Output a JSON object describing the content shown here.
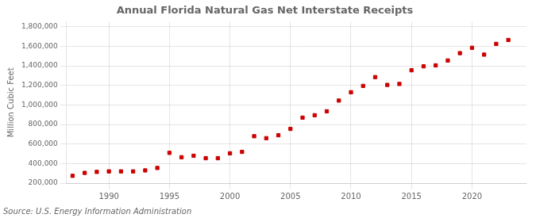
{
  "chart_data": {
    "type": "scatter",
    "title": "Annual Florida Natural Gas Net Interstate Receipts",
    "y_label": "Million Cubic Feet",
    "annotations": [
      "Source: U.S. Energy Information Administration"
    ],
    "x": [
      1987,
      1988,
      1989,
      1990,
      1991,
      1992,
      1993,
      1994,
      1995,
      1996,
      1997,
      1998,
      1999,
      2000,
      2001,
      2002,
      2003,
      2004,
      2005,
      2006,
      2007,
      2008,
      2009,
      2010,
      2011,
      2012,
      2013,
      2014,
      2015,
      2016,
      2017,
      2018,
      2019,
      2020,
      2021,
      2022,
      2023
    ],
    "values": [
      275000,
      305000,
      315000,
      320000,
      320000,
      320000,
      330000,
      355000,
      510000,
      465000,
      480000,
      455000,
      455000,
      505000,
      520000,
      680000,
      660000,
      690000,
      755000,
      870000,
      895000,
      935000,
      1045000,
      1130000,
      1195000,
      1285000,
      1205000,
      1215000,
      1355000,
      1395000,
      1405000,
      1455000,
      1530000,
      1585000,
      1515000,
      1625000,
      1665000
    ],
    "color": "#cc0000",
    "marker": "square",
    "xlim": [
      1986.5,
      2024.5
    ],
    "xticks": [
      1990,
      1995,
      2000,
      2005,
      2010,
      2015,
      2020
    ],
    "ylim": [
      200000,
      1850000
    ],
    "yticks": [
      {
        "value": 200000,
        "label": "200,000"
      },
      {
        "value": 400000,
        "label": "400,000"
      },
      {
        "value": 600000,
        "label": "600,000"
      },
      {
        "value": 800000,
        "label": "800,000"
      },
      {
        "value": 1000000,
        "label": "1,000,000"
      },
      {
        "value": 1200000,
        "label": "1,200,000"
      },
      {
        "value": 1400000,
        "label": "1,400,000"
      },
      {
        "value": 1600000,
        "label": "1,600,000"
      },
      {
        "value": 1800000,
        "label": "1,800,000"
      }
    ],
    "grid": true
  }
}
